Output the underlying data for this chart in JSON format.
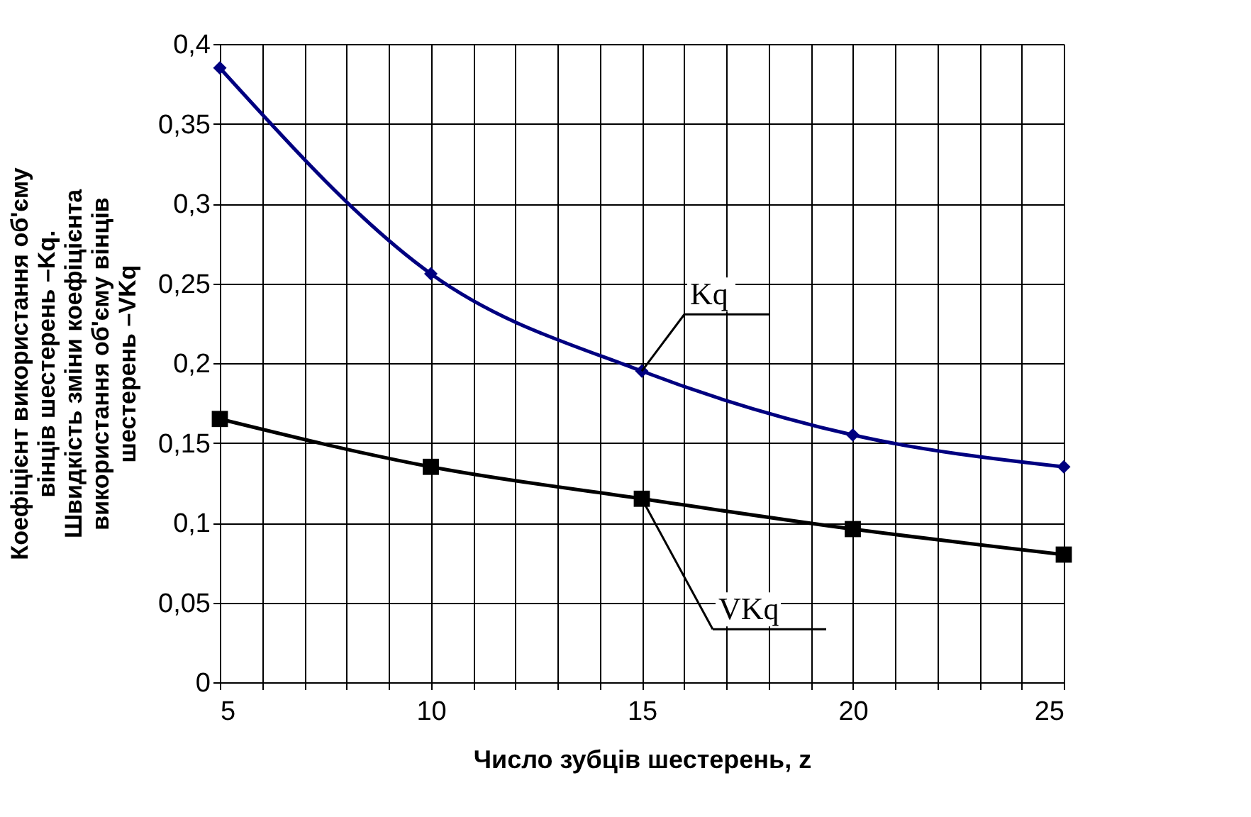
{
  "chart_data": {
    "type": "line",
    "xlabel": "Число зубців шестерень, z",
    "ylabel": "Коефіцієнт використання об'єму\nвінців шестерень –Kq.\nШвидкість зміни коефіцієнта\nвикористання об'єму вінців\nшестерень –VKq",
    "x": [
      5,
      10,
      15,
      20,
      25
    ],
    "series": [
      {
        "name": "Kq",
        "color": "#000080",
        "marker": "diamond",
        "values": [
          0.385,
          0.256,
          0.195,
          0.155,
          0.135
        ]
      },
      {
        "name": "VKq",
        "color": "#000000",
        "marker": "square",
        "values": [
          0.165,
          0.135,
          0.115,
          0.096,
          0.08
        ]
      }
    ],
    "xlim": [
      5,
      25
    ],
    "xticks": [
      5,
      {
        "value": 6,
        "label": null
      },
      {
        "value": 7,
        "label": null
      },
      {
        "value": 8,
        "label": null
      },
      {
        "value": 9,
        "label": null
      },
      10,
      {
        "value": 11,
        "label": null
      },
      {
        "value": 12,
        "label": null
      },
      {
        "value": 13,
        "label": null
      },
      {
        "value": 14,
        "label": null
      },
      15,
      {
        "value": 16,
        "label": null
      },
      {
        "value": 17,
        "label": null
      },
      {
        "value": 18,
        "label": null
      },
      {
        "value": 19,
        "label": null
      },
      20,
      {
        "value": 21,
        "label": null
      },
      {
        "value": 22,
        "label": null
      },
      {
        "value": 23,
        "label": null
      },
      {
        "value": 24,
        "label": null
      },
      25
    ],
    "ylim": [
      0,
      0.4
    ],
    "yticks": [
      {
        "value": 0,
        "label": "0"
      },
      {
        "value": 0.05,
        "label": "0,05"
      },
      {
        "value": 0.1,
        "label": "0,1"
      },
      {
        "value": 0.15,
        "label": "0,15"
      },
      {
        "value": 0.2,
        "label": "0,2"
      },
      {
        "value": 0.25,
        "label": "0,25"
      },
      {
        "value": 0.3,
        "label": "0,3"
      },
      {
        "value": 0.35,
        "label": "0,35"
      },
      {
        "value": 0.4,
        "label": "0,4"
      }
    ],
    "grid": true,
    "legend": false,
    "line_style": "solid"
  }
}
